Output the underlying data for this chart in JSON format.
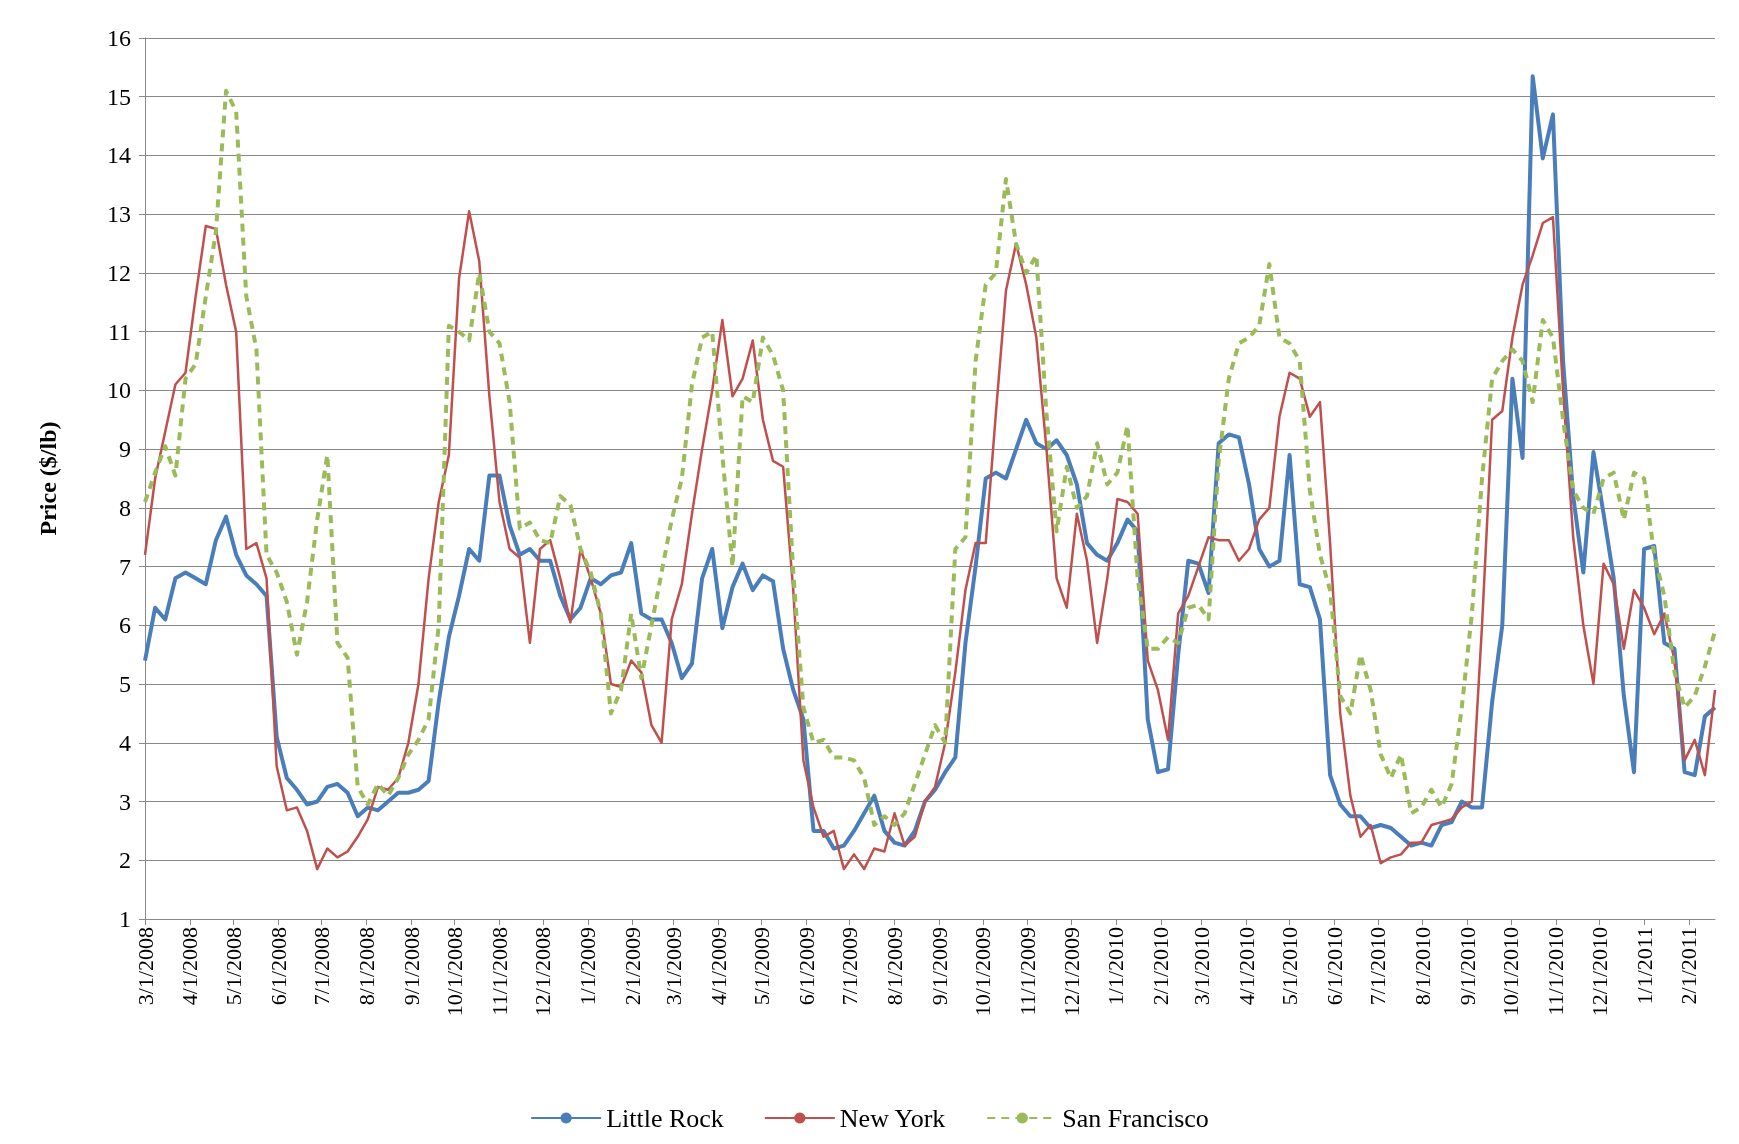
{
  "chart_data": {
    "type": "line",
    "ylabel": "Price ($/lb)",
    "ylim": [
      1,
      16
    ],
    "yticks": [
      1,
      2,
      3,
      4,
      5,
      6,
      7,
      8,
      9,
      10,
      11,
      12,
      13,
      14,
      15,
      16
    ],
    "grid": "y",
    "legend": "bottom",
    "marker": "none",
    "xlim": [
      "2008-03-01",
      "2011-02-19"
    ],
    "xticks": [
      {
        "value": "2008-03-01",
        "label": "3/1/2008"
      },
      {
        "value": "2008-04-01",
        "label": "4/1/2008"
      },
      {
        "value": "2008-05-01",
        "label": "5/1/2008"
      },
      {
        "value": "2008-06-01",
        "label": "6/1/2008"
      },
      {
        "value": "2008-07-01",
        "label": "7/1/2008"
      },
      {
        "value": "2008-08-01",
        "label": "8/1/2008"
      },
      {
        "value": "2008-09-01",
        "label": "9/1/2008"
      },
      {
        "value": "2008-10-01",
        "label": "10/1/2008"
      },
      {
        "value": "2008-11-01",
        "label": "11/1/2008"
      },
      {
        "value": "2008-12-01",
        "label": "12/1/2008"
      },
      {
        "value": "2009-01-01",
        "label": "1/1/2009"
      },
      {
        "value": "2009-02-01",
        "label": "2/1/2009"
      },
      {
        "value": "2009-03-01",
        "label": "3/1/2009"
      },
      {
        "value": "2009-04-01",
        "label": "4/1/2009"
      },
      {
        "value": "2009-05-01",
        "label": "5/1/2009"
      },
      {
        "value": "2009-06-01",
        "label": "6/1/2009"
      },
      {
        "value": "2009-07-01",
        "label": "7/1/2009"
      },
      {
        "value": "2009-08-01",
        "label": "8/1/2009"
      },
      {
        "value": "2009-09-01",
        "label": "9/1/2009"
      },
      {
        "value": "2009-10-01",
        "label": "10/1/2009"
      },
      {
        "value": "2009-11-01",
        "label": "11/1/2009"
      },
      {
        "value": "2009-12-01",
        "label": "12/1/2009"
      },
      {
        "value": "2010-01-01",
        "label": "1/1/2010"
      },
      {
        "value": "2010-02-01",
        "label": "2/1/2010"
      },
      {
        "value": "2010-03-01",
        "label": "3/1/2010"
      },
      {
        "value": "2010-04-01",
        "label": "4/1/2010"
      },
      {
        "value": "2010-05-01",
        "label": "5/1/2010"
      },
      {
        "value": "2010-06-01",
        "label": "6/1/2010"
      },
      {
        "value": "2010-07-01",
        "label": "7/1/2010"
      },
      {
        "value": "2010-08-01",
        "label": "8/1/2010"
      },
      {
        "value": "2010-09-01",
        "label": "9/1/2010"
      },
      {
        "value": "2010-10-01",
        "label": "10/1/2010"
      },
      {
        "value": "2010-11-01",
        "label": "11/1/2010"
      },
      {
        "value": "2010-12-01",
        "label": "12/1/2010"
      },
      {
        "value": "2011-01-01",
        "label": "1/1/2011"
      },
      {
        "value": "2011-02-01",
        "label": "2/1/2011"
      }
    ],
    "x": [
      "2008-03-01",
      "2008-03-08",
      "2008-03-15",
      "2008-03-22",
      "2008-03-29",
      "2008-04-05",
      "2008-04-12",
      "2008-04-19",
      "2008-04-26",
      "2008-05-03",
      "2008-05-10",
      "2008-05-17",
      "2008-05-24",
      "2008-05-31",
      "2008-06-07",
      "2008-06-14",
      "2008-06-21",
      "2008-06-28",
      "2008-07-05",
      "2008-07-12",
      "2008-07-19",
      "2008-07-26",
      "2008-08-02",
      "2008-08-09",
      "2008-08-16",
      "2008-08-23",
      "2008-08-30",
      "2008-09-06",
      "2008-09-13",
      "2008-09-20",
      "2008-09-27",
      "2008-10-04",
      "2008-10-11",
      "2008-10-18",
      "2008-10-25",
      "2008-11-01",
      "2008-11-08",
      "2008-11-15",
      "2008-11-22",
      "2008-11-29",
      "2008-12-06",
      "2008-12-13",
      "2008-12-20",
      "2008-12-27",
      "2009-01-03",
      "2009-01-10",
      "2009-01-17",
      "2009-01-24",
      "2009-01-31",
      "2009-02-07",
      "2009-02-14",
      "2009-02-21",
      "2009-02-28",
      "2009-03-07",
      "2009-03-14",
      "2009-03-21",
      "2009-03-28",
      "2009-04-04",
      "2009-04-11",
      "2009-04-18",
      "2009-04-25",
      "2009-05-02",
      "2009-05-09",
      "2009-05-16",
      "2009-05-23",
      "2009-05-30",
      "2009-06-06",
      "2009-06-13",
      "2009-06-20",
      "2009-06-27",
      "2009-07-04",
      "2009-07-11",
      "2009-07-18",
      "2009-07-25",
      "2009-08-01",
      "2009-08-08",
      "2009-08-15",
      "2009-08-22",
      "2009-08-29",
      "2009-09-05",
      "2009-09-12",
      "2009-09-19",
      "2009-09-26",
      "2009-10-03",
      "2009-10-10",
      "2009-10-17",
      "2009-10-24",
      "2009-10-31",
      "2009-11-07",
      "2009-11-14",
      "2009-11-21",
      "2009-11-28",
      "2009-12-05",
      "2009-12-12",
      "2009-12-19",
      "2009-12-26",
      "2010-01-02",
      "2010-01-09",
      "2010-01-16",
      "2010-01-23",
      "2010-01-30",
      "2010-02-06",
      "2010-02-13",
      "2010-02-20",
      "2010-02-27",
      "2010-03-06",
      "2010-03-13",
      "2010-03-20",
      "2010-03-27",
      "2010-04-03",
      "2010-04-10",
      "2010-04-17",
      "2010-04-24",
      "2010-05-01",
      "2010-05-08",
      "2010-05-15",
      "2010-05-22",
      "2010-05-29",
      "2010-06-05",
      "2010-06-12",
      "2010-06-19",
      "2010-06-26",
      "2010-07-03",
      "2010-07-10",
      "2010-07-17",
      "2010-07-24",
      "2010-07-31",
      "2010-08-07",
      "2010-08-14",
      "2010-08-21",
      "2010-08-28",
      "2010-09-04",
      "2010-09-11",
      "2010-09-18",
      "2010-09-25",
      "2010-10-02",
      "2010-10-09",
      "2010-10-16",
      "2010-10-23",
      "2010-10-30",
      "2010-11-06",
      "2010-11-13",
      "2010-11-20",
      "2010-11-27",
      "2010-12-04",
      "2010-12-11",
      "2010-12-18",
      "2010-12-25",
      "2011-01-01",
      "2011-01-08",
      "2011-01-15",
      "2011-01-22",
      "2011-01-29",
      "2011-02-05",
      "2011-02-12",
      "2011-02-19"
    ],
    "series": [
      {
        "name": "Little Rock",
        "color": "#4a7ebb",
        "line_style": "solid",
        "values": [
          5.4,
          6.3,
          6.1,
          6.8,
          6.9,
          6.8,
          6.7,
          7.45,
          7.85,
          7.2,
          6.85,
          6.7,
          6.5,
          4.1,
          3.4,
          3.2,
          2.95,
          3.0,
          3.25,
          3.3,
          3.15,
          2.75,
          2.9,
          2.85,
          3.0,
          3.15,
          3.15,
          3.2,
          3.35,
          4.7,
          5.8,
          6.5,
          7.3,
          7.1,
          8.55,
          8.55,
          7.7,
          7.2,
          7.3,
          7.1,
          7.1,
          6.5,
          6.1,
          6.3,
          6.8,
          6.7,
          6.85,
          6.9,
          7.4,
          6.2,
          6.1,
          6.1,
          5.7,
          5.1,
          5.35,
          6.8,
          7.3,
          5.95,
          6.65,
          7.05,
          6.6,
          6.85,
          6.75,
          5.6,
          4.9,
          4.4,
          2.5,
          2.5,
          2.2,
          2.25,
          2.5,
          2.8,
          3.1,
          2.5,
          2.3,
          2.25,
          2.5,
          3.0,
          3.2,
          3.5,
          3.75,
          5.7,
          7.0,
          8.5,
          8.6,
          8.5,
          9.0,
          9.5,
          9.1,
          9.0,
          9.15,
          8.9,
          8.4,
          7.4,
          7.2,
          7.1,
          7.4,
          7.8,
          7.6,
          4.4,
          3.5,
          3.55,
          5.5,
          7.1,
          7.05,
          6.55,
          9.1,
          9.25,
          9.2,
          8.4,
          7.3,
          7.0,
          7.1,
          8.9,
          6.7,
          6.65,
          6.1,
          3.45,
          2.95,
          2.75,
          2.75,
          2.55,
          2.6,
          2.55,
          2.4,
          2.25,
          2.3,
          2.25,
          2.6,
          2.65,
          3.0,
          2.9,
          2.9,
          4.7,
          6.0,
          10.2,
          8.85,
          15.35,
          13.95,
          14.7,
          10.5,
          8.2,
          6.9,
          8.95,
          7.9,
          6.8,
          4.8,
          3.5,
          7.3,
          7.35,
          5.7,
          5.6,
          3.5,
          3.45,
          4.45,
          4.6
        ]
      },
      {
        "name": "New York",
        "color": "#c0504d",
        "line_style": "solid",
        "values": [
          7.2,
          8.5,
          9.3,
          10.1,
          10.3,
          11.6,
          12.8,
          12.75,
          11.8,
          11.0,
          7.3,
          7.4,
          6.8,
          3.6,
          2.85,
          2.9,
          2.5,
          1.85,
          2.2,
          2.05,
          2.15,
          2.4,
          2.7,
          3.25,
          3.2,
          3.4,
          4.0,
          5.0,
          6.8,
          8.1,
          8.9,
          11.9,
          13.05,
          12.2,
          9.9,
          8.1,
          7.3,
          7.15,
          5.7,
          7.3,
          7.45,
          6.8,
          6.05,
          7.3,
          6.8,
          6.2,
          5.0,
          4.95,
          5.4,
          5.2,
          4.3,
          4.0,
          6.1,
          6.7,
          7.9,
          9.0,
          10.0,
          11.2,
          9.9,
          10.2,
          10.85,
          9.5,
          8.8,
          8.7,
          6.6,
          3.7,
          2.9,
          2.4,
          2.5,
          1.85,
          2.1,
          1.85,
          2.2,
          2.15,
          2.8,
          2.25,
          2.4,
          3.0,
          3.25,
          4.0,
          5.2,
          6.6,
          7.4,
          7.4,
          9.6,
          11.7,
          12.5,
          11.8,
          10.9,
          9.0,
          6.8,
          6.3,
          7.9,
          7.1,
          5.7,
          6.8,
          8.15,
          8.1,
          7.9,
          5.4,
          4.9,
          4.05,
          6.2,
          6.5,
          7.0,
          7.5,
          7.45,
          7.45,
          7.1,
          7.3,
          7.8,
          8.0,
          9.55,
          10.3,
          10.2,
          9.55,
          9.8,
          7.4,
          4.5,
          3.1,
          2.4,
          2.6,
          1.95,
          2.05,
          2.1,
          2.3,
          2.3,
          2.6,
          2.65,
          2.7,
          2.9,
          3.0,
          6.0,
          9.5,
          9.65,
          10.9,
          11.8,
          12.3,
          12.85,
          12.95,
          10.0,
          7.5,
          6.0,
          5.0,
          7.05,
          6.7,
          5.6,
          6.6,
          6.3,
          5.85,
          6.2,
          5.4,
          3.7,
          4.05,
          3.45,
          4.9
        ]
      },
      {
        "name": "San Francisco",
        "color": "#9bbb59",
        "line_style": "dashed",
        "values": [
          8.1,
          8.6,
          9.05,
          8.55,
          10.2,
          10.45,
          11.6,
          12.7,
          15.1,
          14.75,
          11.6,
          10.7,
          7.2,
          6.9,
          6.4,
          5.5,
          6.4,
          7.8,
          8.9,
          5.7,
          5.45,
          3.25,
          2.95,
          3.3,
          3.1,
          3.4,
          3.8,
          4.05,
          4.4,
          6.0,
          11.1,
          11.0,
          10.85,
          12.0,
          11.0,
          10.8,
          9.8,
          7.65,
          7.75,
          7.45,
          7.4,
          8.2,
          8.05,
          7.3,
          6.9,
          6.2,
          4.5,
          4.9,
          6.2,
          5.1,
          6.0,
          6.9,
          7.8,
          8.5,
          10.1,
          10.9,
          11.0,
          8.9,
          7.0,
          9.9,
          9.8,
          10.9,
          10.6,
          10.0,
          6.9,
          4.6,
          4.0,
          4.05,
          3.75,
          3.75,
          3.7,
          3.4,
          2.6,
          2.75,
          2.6,
          2.8,
          3.3,
          3.8,
          4.3,
          4.0,
          7.3,
          7.5,
          10.5,
          11.8,
          12.0,
          13.6,
          12.5,
          12.0,
          12.3,
          9.6,
          7.6,
          8.7,
          8.0,
          8.2,
          9.1,
          8.4,
          8.6,
          9.4,
          6.8,
          5.6,
          5.6,
          5.8,
          5.7,
          6.3,
          6.35,
          6.1,
          8.8,
          10.2,
          10.8,
          10.9,
          11.1,
          12.15,
          10.9,
          10.8,
          10.5,
          8.3,
          7.2,
          6.6,
          4.8,
          4.5,
          5.5,
          4.9,
          3.8,
          3.4,
          3.8,
          2.8,
          2.9,
          3.2,
          2.9,
          3.3,
          4.6,
          6.2,
          8.5,
          10.2,
          10.5,
          10.7,
          10.5,
          9.8,
          11.2,
          10.9,
          9.5,
          8.3,
          8.0,
          7.9,
          8.5,
          8.6,
          7.8,
          8.6,
          8.5,
          7.2,
          6.5,
          5.2,
          4.6,
          4.8,
          5.3,
          5.9
        ]
      }
    ]
  }
}
